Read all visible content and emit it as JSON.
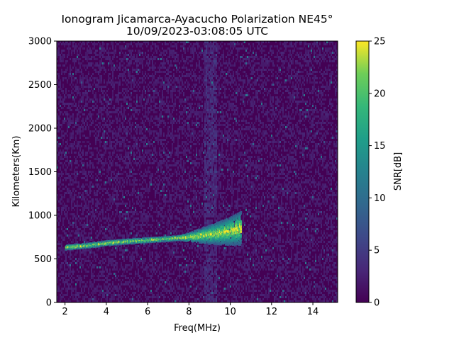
{
  "chart_data": {
    "type": "heatmap",
    "title_lines": [
      "Ionogram Jicamarca-Ayacucho Polarization NE45°",
      "10/09/2023-03:08:05 UTC"
    ],
    "xlabel": "Freq(MHz)",
    "ylabel": "Kilometers(Km)",
    "xlim": [
      1.6,
      15.2
    ],
    "ylim": [
      0,
      3000
    ],
    "xticks": [
      2,
      4,
      6,
      8,
      10,
      12,
      14
    ],
    "yticks": [
      0,
      500,
      1000,
      1500,
      2000,
      2500,
      3000
    ],
    "colorbar": {
      "label": "SNR[dB]",
      "range": [
        0,
        25
      ],
      "ticks": [
        0,
        5,
        10,
        15,
        20,
        25
      ],
      "colormap": "viridis"
    },
    "trace": {
      "description_points_freq_MHz": [
        2.0,
        3.0,
        4.0,
        5.0,
        6.0,
        7.0,
        8.0,
        9.0,
        10.0,
        10.5
      ],
      "virtual_height_km": [
        630,
        650,
        680,
        700,
        715,
        730,
        750,
        780,
        820,
        850
      ],
      "peak_snr_dB": 25
    },
    "background_snr_dB": 1
  },
  "colors": {
    "viridis_0": "#440154",
    "viridis_25": "#3b528b",
    "viridis_50": "#21918c",
    "viridis_75": "#5ec962",
    "viridis_100": "#fde725"
  }
}
